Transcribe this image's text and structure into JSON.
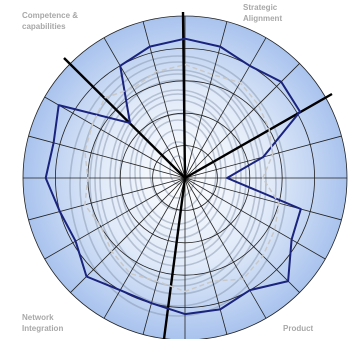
{
  "chart_data": {
    "type": "radar",
    "annotations": [
      {
        "lines": [
          "Competence &",
          "capabilities"
        ],
        "corner": "top-left"
      },
      {
        "lines": [
          "Strategic",
          "Alignment"
        ],
        "corner": "top-right"
      },
      {
        "lines": [
          "Network",
          "Integration"
        ],
        "corner": "bottom-left"
      },
      {
        "lines": [
          "Product"
        ],
        "corner": "bottom-right"
      }
    ],
    "ylim": [
      0,
      5
    ],
    "yticks": [
      0,
      1,
      2,
      3,
      4,
      5
    ],
    "grid": true,
    "series": [
      {
        "color": "#1a237e",
        "style": "solid",
        "values": [
          4.3,
          4.2,
          4.0,
          4.2,
          4.1,
          2.5,
          1.3,
          3.7,
          3.8,
          4.5,
          4.0,
          4.2,
          4.2,
          4.0,
          4.0,
          4.3,
          3.9,
          4.0,
          4.3,
          4.2,
          4.5,
          2.4,
          4.0,
          4.2
        ]
      },
      {
        "color": "#c8c8c8",
        "style": "dashed",
        "values": [
          3.5,
          3.3,
          3.4,
          3.2,
          3.0,
          2.8,
          2.4,
          3.0,
          3.2,
          3.4,
          3.6,
          3.3,
          3.5,
          3.3,
          3.4,
          3.2,
          3.0,
          3.2,
          3.0,
          3.2,
          3.3,
          3.5,
          3.2,
          3.4
        ]
      }
    ]
  }
}
